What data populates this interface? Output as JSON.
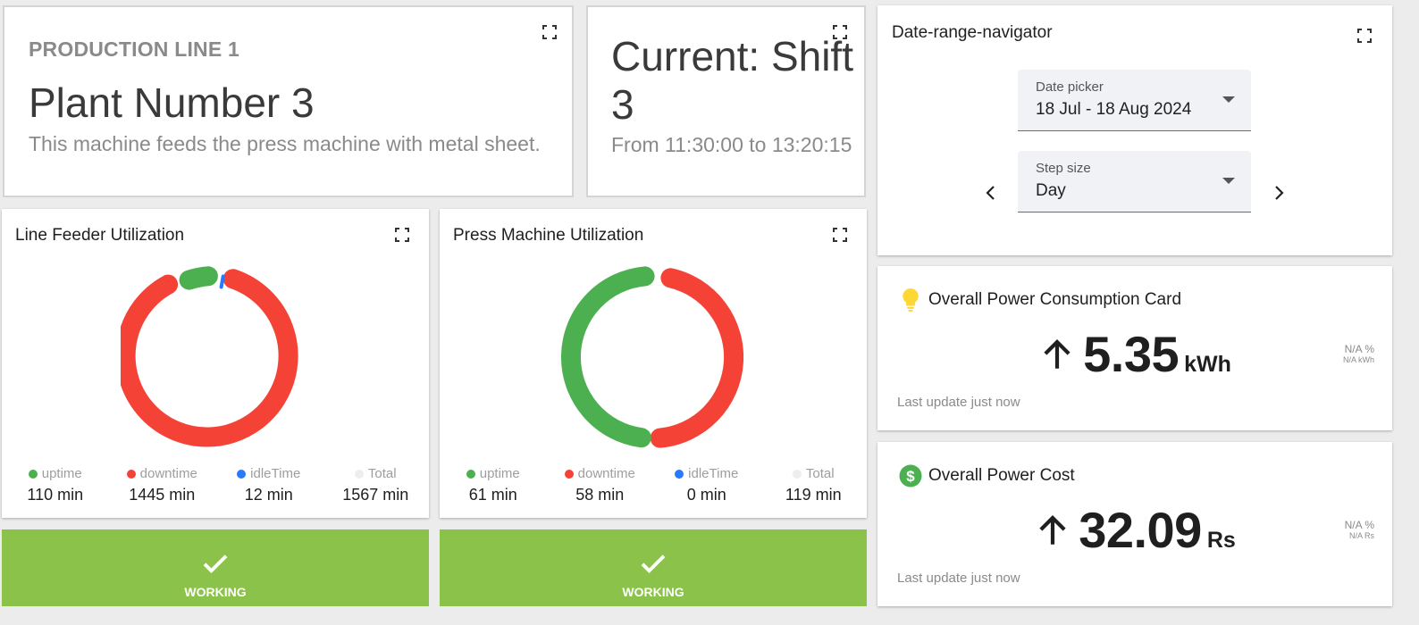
{
  "production_line": {
    "kicker": "PRODUCTION LINE 1",
    "name": "Plant Number 3",
    "description": "This machine feeds the press machine with metal sheet."
  },
  "shift": {
    "title": "Current: Shift 3",
    "time": "From 11:30:00 to 13:20:15"
  },
  "line_feeder": {
    "title": "Line Feeder Utilization",
    "legend": [
      {
        "label": "uptime",
        "value": "110 min",
        "color": "#4caf50"
      },
      {
        "label": "downtime",
        "value": "1445 min",
        "color": "#f44336"
      },
      {
        "label": "idleTime",
        "value": "12 min",
        "color": "#2979ff"
      },
      {
        "label": "Total",
        "value": "1567 min",
        "color": "#eeeeee"
      }
    ],
    "status": "WORKING"
  },
  "press_machine": {
    "title": "Press Machine Utilization",
    "legend": [
      {
        "label": "uptime",
        "value": "61 min",
        "color": "#4caf50"
      },
      {
        "label": "downtime",
        "value": "58 min",
        "color": "#f44336"
      },
      {
        "label": "idleTime",
        "value": "0 min",
        "color": "#2979ff"
      },
      {
        "label": "Total",
        "value": "119 min",
        "color": "#eeeeee"
      }
    ],
    "status": "WORKING"
  },
  "date_nav": {
    "title": "Date-range-navigator",
    "date_picker_label": "Date picker",
    "date_picker_value": "18 Jul - 18 Aug 2024",
    "step_label": "Step size",
    "step_value": "Day"
  },
  "power_consumption": {
    "title": "Overall Power Consumption Card",
    "value": "5.35",
    "unit": "kWh",
    "side_main": "N/A %",
    "side_sub": "N/A kWh",
    "update": "Last update just now",
    "icon": "lightbulb-icon",
    "icon_color": "#fdd835"
  },
  "power_cost": {
    "title": "Overall Power Cost",
    "value": "32.09",
    "unit": "Rs",
    "side_main": "N/A %",
    "side_sub": "N/A Rs",
    "update": "Last update just now",
    "icon": "dollar-icon",
    "icon_color": "#4caf50"
  },
  "colors": {
    "uptime": "#4caf50",
    "downtime": "#f44336",
    "idle": "#2979ff",
    "status_ok": "#8bc34a"
  }
}
